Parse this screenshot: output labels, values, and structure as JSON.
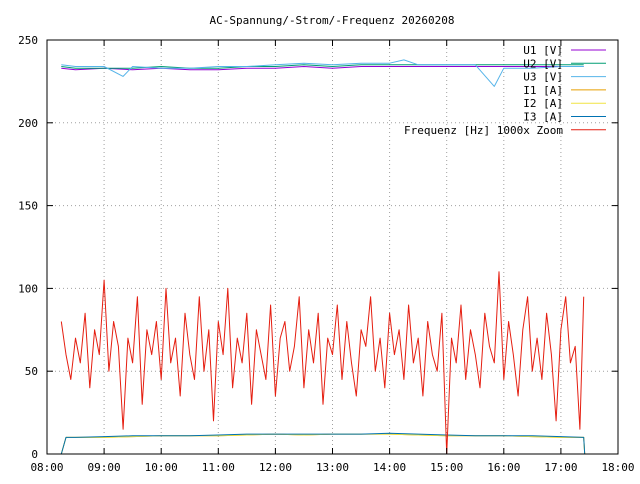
{
  "chart_data": {
    "type": "line",
    "title": "AC-Spannung/-Strom/-Frequenz 20260208",
    "xlabel": "",
    "ylabel": "",
    "xlim": [
      "08:00",
      "18:00"
    ],
    "ylim": [
      0,
      250
    ],
    "x_ticks": [
      "08:00",
      "09:00",
      "10:00",
      "11:00",
      "12:00",
      "13:00",
      "14:00",
      "15:00",
      "16:00",
      "17:00",
      "18:00"
    ],
    "y_ticks": [
      0,
      50,
      100,
      150,
      200,
      250
    ],
    "grid": true,
    "legend_position": "top-right",
    "series": [
      {
        "name": "U1 [V]",
        "color": "#9400d3",
        "x": [
          "08:15",
          "08:30",
          "09:00",
          "09:30",
          "10:00",
          "10:30",
          "11:00",
          "11:30",
          "12:00",
          "12:30",
          "13:00",
          "13:30",
          "14:00",
          "14:30",
          "15:00",
          "15:30",
          "16:00",
          "16:30",
          "17:00",
          "17:24"
        ],
        "y": [
          233,
          232,
          233,
          232,
          233,
          232,
          232,
          233,
          233,
          234,
          233,
          234,
          234,
          234,
          234,
          234,
          234,
          234,
          234,
          234
        ]
      },
      {
        "name": "U2 [V]",
        "color": "#009e73",
        "x": [
          "08:15",
          "08:30",
          "09:00",
          "09:30",
          "10:00",
          "10:30",
          "11:00",
          "11:30",
          "12:00",
          "12:30",
          "13:00",
          "13:30",
          "14:00",
          "14:30",
          "15:00",
          "15:30",
          "16:00",
          "16:30",
          "17:00",
          "17:24"
        ],
        "y": [
          234,
          233,
          233,
          233,
          234,
          233,
          233,
          234,
          234,
          235,
          234,
          235,
          235,
          235,
          235,
          235,
          235,
          235,
          235,
          235
        ]
      },
      {
        "name": "U3 [V]",
        "color": "#56b4e9",
        "x": [
          "08:15",
          "08:30",
          "09:00",
          "09:20",
          "09:30",
          "10:00",
          "10:30",
          "11:00",
          "11:30",
          "12:00",
          "12:30",
          "13:00",
          "13:30",
          "14:00",
          "14:15",
          "14:30",
          "15:00",
          "15:30",
          "15:50",
          "16:00",
          "16:30",
          "17:00",
          "17:24"
        ],
        "y": [
          235,
          234,
          234,
          228,
          234,
          233,
          233,
          234,
          234,
          235,
          236,
          235,
          236,
          236,
          238,
          235,
          235,
          235,
          222,
          233,
          233,
          234,
          234
        ]
      },
      {
        "name": "I1 [A]",
        "color": "#e69f00",
        "x": [
          "08:15",
          "08:20",
          "08:30",
          "09:00",
          "09:30",
          "10:00",
          "10:30",
          "11:00",
          "11:30",
          "12:00",
          "12:30",
          "13:00",
          "13:30",
          "14:00",
          "14:30",
          "15:00",
          "15:30",
          "16:00",
          "16:30",
          "17:00",
          "17:24",
          "17:25"
        ],
        "y": [
          0,
          10,
          10,
          10,
          10.5,
          11,
          11,
          11,
          11.5,
          12,
          11.5,
          12,
          12,
          12,
          11.5,
          11,
          11,
          11,
          10.5,
          10,
          10,
          0
        ]
      },
      {
        "name": "I2 [A]",
        "color": "#f0e442",
        "x": [
          "08:15",
          "08:20",
          "08:30",
          "09:00",
          "09:30",
          "10:00",
          "10:30",
          "11:00",
          "11:30",
          "12:00",
          "12:30",
          "13:00",
          "13:30",
          "14:00",
          "14:30",
          "15:00",
          "15:30",
          "16:00",
          "16:30",
          "17:00",
          "17:24",
          "17:25"
        ],
        "y": [
          0,
          10,
          10,
          10,
          10.5,
          11,
          11,
          11,
          11.5,
          12,
          11.5,
          12,
          12,
          12,
          11.5,
          11,
          11,
          11,
          10.5,
          10,
          10,
          0
        ]
      },
      {
        "name": "I3 [A]",
        "color": "#0072b2",
        "x": [
          "08:15",
          "08:20",
          "08:30",
          "09:00",
          "09:30",
          "10:00",
          "10:30",
          "11:00",
          "11:30",
          "12:00",
          "12:30",
          "13:00",
          "13:30",
          "14:00",
          "14:30",
          "15:00",
          "15:30",
          "16:00",
          "16:30",
          "17:00",
          "17:24",
          "17:25"
        ],
        "y": [
          0,
          10,
          10,
          10.5,
          11,
          11,
          11,
          11.5,
          12,
          12,
          12,
          12,
          12,
          12.5,
          12,
          11.5,
          11,
          11,
          11,
          10.5,
          10,
          0
        ]
      },
      {
        "name": "Frequenz [Hz] 1000x Zoom",
        "color": "#e51e10",
        "x": [
          "08:15",
          "08:20",
          "08:25",
          "08:30",
          "08:35",
          "08:40",
          "08:45",
          "08:50",
          "08:55",
          "09:00",
          "09:05",
          "09:10",
          "09:15",
          "09:20",
          "09:25",
          "09:30",
          "09:35",
          "09:40",
          "09:45",
          "09:50",
          "09:55",
          "10:00",
          "10:05",
          "10:10",
          "10:15",
          "10:20",
          "10:25",
          "10:30",
          "10:35",
          "10:40",
          "10:45",
          "10:50",
          "10:55",
          "11:00",
          "11:05",
          "11:10",
          "11:15",
          "11:20",
          "11:25",
          "11:30",
          "11:35",
          "11:40",
          "11:45",
          "11:50",
          "11:55",
          "12:00",
          "12:05",
          "12:10",
          "12:15",
          "12:20",
          "12:25",
          "12:30",
          "12:35",
          "12:40",
          "12:45",
          "12:50",
          "12:55",
          "13:00",
          "13:05",
          "13:10",
          "13:15",
          "13:20",
          "13:25",
          "13:30",
          "13:35",
          "13:40",
          "13:45",
          "13:50",
          "13:55",
          "14:00",
          "14:05",
          "14:10",
          "14:15",
          "14:20",
          "14:25",
          "14:30",
          "14:35",
          "14:40",
          "14:45",
          "14:50",
          "14:55",
          "15:00",
          "15:05",
          "15:10",
          "15:15",
          "15:20",
          "15:25",
          "15:30",
          "15:35",
          "15:40",
          "15:45",
          "15:50",
          "15:55",
          "16:00",
          "16:05",
          "16:10",
          "16:15",
          "16:20",
          "16:25",
          "16:30",
          "16:35",
          "16:40",
          "16:45",
          "16:50",
          "16:55",
          "17:00",
          "17:05",
          "17:10",
          "17:15",
          "17:20",
          "17:24"
        ],
        "y": [
          80,
          60,
          45,
          70,
          55,
          85,
          40,
          75,
          60,
          105,
          50,
          80,
          65,
          15,
          70,
          55,
          95,
          30,
          75,
          60,
          80,
          45,
          100,
          55,
          70,
          35,
          85,
          60,
          45,
          95,
          50,
          75,
          20,
          80,
          60,
          100,
          40,
          70,
          55,
          85,
          30,
          75,
          60,
          45,
          90,
          35,
          70,
          80,
          50,
          65,
          95,
          40,
          75,
          55,
          85,
          30,
          70,
          60,
          90,
          45,
          80,
          55,
          35,
          75,
          65,
          95,
          50,
          70,
          40,
          85,
          60,
          75,
          45,
          90,
          55,
          70,
          35,
          80,
          60,
          50,
          85,
          0,
          70,
          55,
          90,
          45,
          75,
          60,
          40,
          85,
          65,
          55,
          110,
          45,
          80,
          60,
          35,
          75,
          95,
          50,
          70,
          45,
          85,
          60,
          20,
          75,
          95,
          55,
          65,
          15,
          95
        ]
      }
    ]
  }
}
